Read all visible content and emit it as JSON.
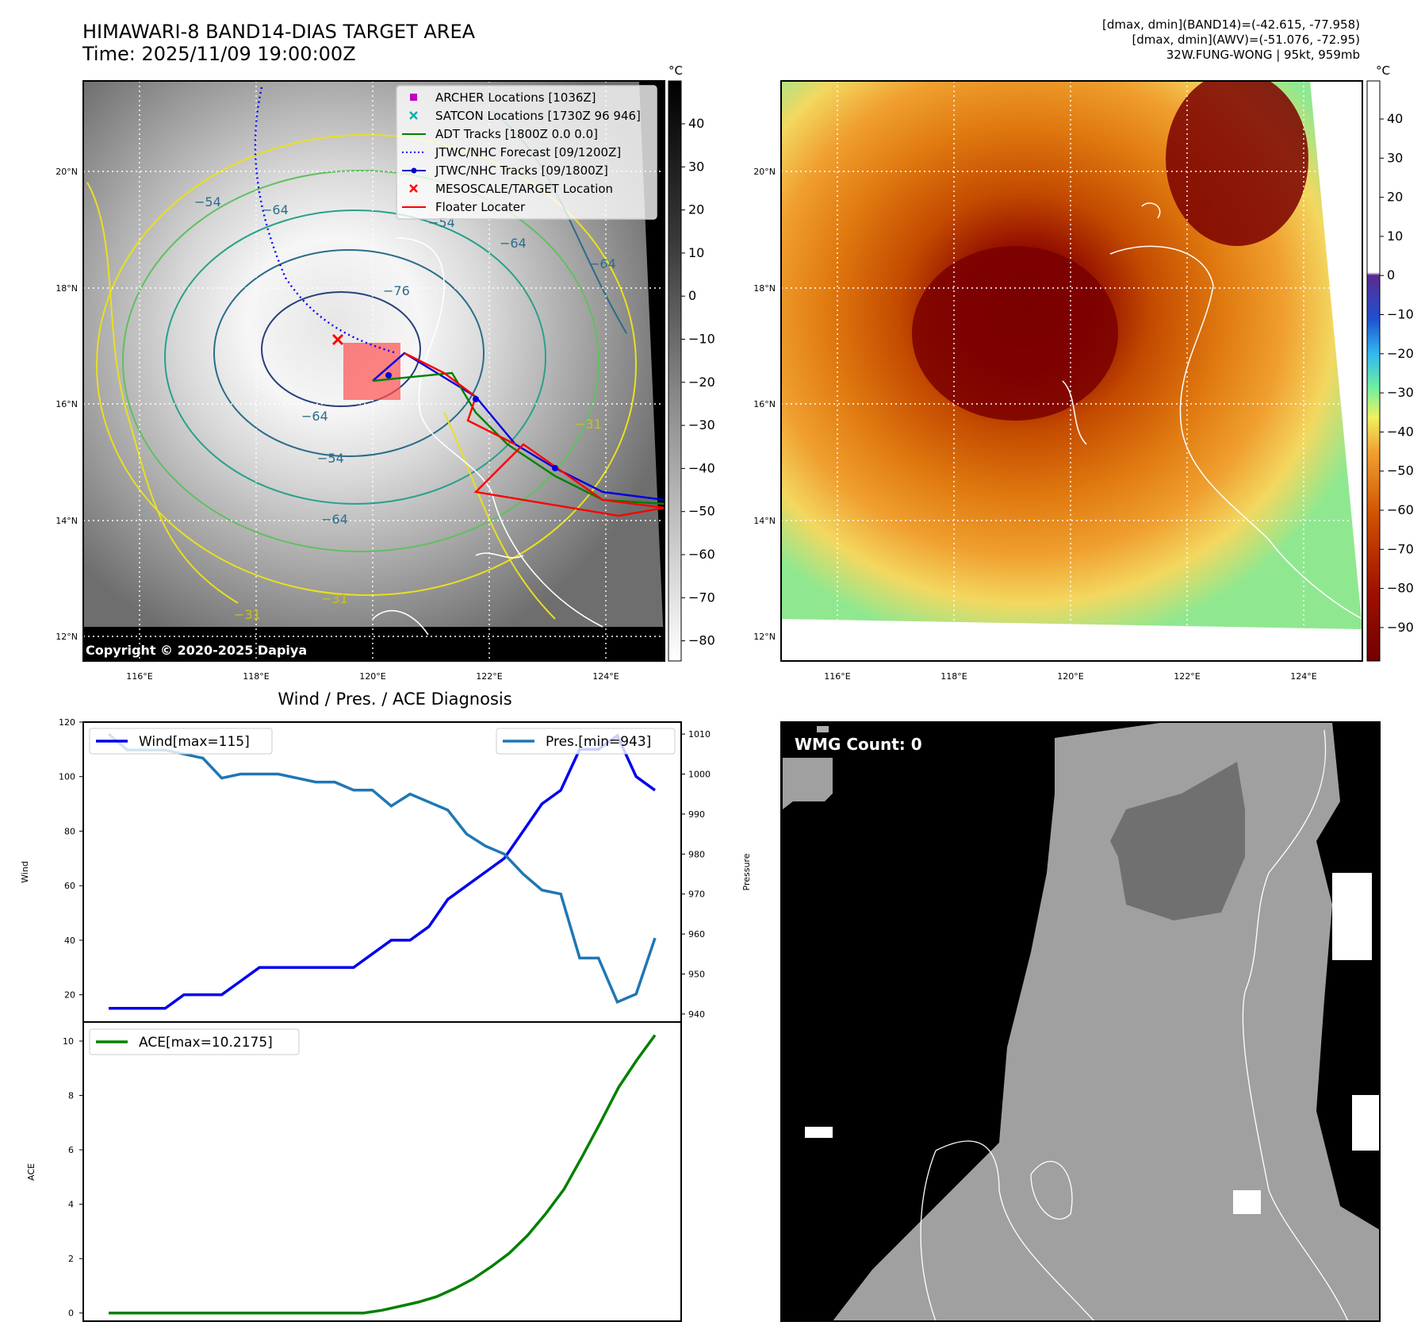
{
  "header": {
    "title_line1": "HIMAWARI-8 BAND14-DIAS TARGET AREA",
    "title_line2": "Time: 2025/11/09 19:00:00Z",
    "info_line1": "[dmax, dmin](BAND14)=(-42.615, -77.958)",
    "info_line2": "[dmax, dmin](AWV)=(-51.076, -72.95)",
    "info_line3": "32W.FUNG-WONG | 95kt, 959mb"
  },
  "map": {
    "lat_labels": [
      "20°N",
      "18°N",
      "16°N",
      "14°N",
      "12°N"
    ],
    "lon_labels": [
      "116°E",
      "118°E",
      "120°E",
      "122°E",
      "124°E"
    ],
    "copyright": "Copyright © 2020-2025 Dapiya",
    "contour_labels": [
      "-64",
      "-54",
      "-64",
      "-54",
      "-31",
      "-31",
      "-64",
      "-54",
      "-76",
      "-64",
      "-31",
      "-64"
    ]
  },
  "legend": {
    "items": [
      {
        "label": "ARCHER Locations [1036Z]",
        "color": "#c000c0",
        "marker": "square"
      },
      {
        "label": "SATCON Locations [1730Z 96 946]",
        "color": "#00b0b0",
        "marker": "x"
      },
      {
        "label": "ADT Tracks [1800Z 0.0 0.0]",
        "color": "#008000",
        "marker": "line"
      },
      {
        "label": "JTWC/NHC Forecast [09/1200Z]",
        "color": "#0000ff",
        "marker": "dotted"
      },
      {
        "label": "JTWC/NHC Tracks [09/1800Z]",
        "color": "#0000cc",
        "marker": "line-dot"
      },
      {
        "label": "MESOSCALE/TARGET Location",
        "color": "#ff0000",
        "marker": "x"
      },
      {
        "label": "Floater Locater",
        "color": "#ff0000",
        "marker": "line"
      }
    ]
  },
  "colorbar_left": {
    "unit": "°C",
    "ticks": [
      "40",
      "30",
      "20",
      "10",
      "0",
      "−10",
      "−20",
      "−30",
      "−40",
      "−50",
      "−60",
      "−70",
      "−80"
    ]
  },
  "colorbar_right": {
    "unit": "°C",
    "ticks": [
      "40",
      "30",
      "20",
      "10",
      "0",
      "−10",
      "−20",
      "−30",
      "−40",
      "−50",
      "−60",
      "−70",
      "−80",
      "−90"
    ]
  },
  "wmg": {
    "label": "WMG Count: 0"
  },
  "chart_data": [
    {
      "type": "line",
      "title": "Wind / Pres. / ACE Diagnosis",
      "ylabel": "Wind",
      "ylabel_right": "Pressure",
      "ylim": [
        10,
        120
      ],
      "ylim_right": [
        938,
        1013
      ],
      "y_ticks": [
        "120",
        "100",
        "80",
        "60",
        "40",
        "20"
      ],
      "y_ticks_right": [
        "1010",
        "1000",
        "990",
        "980",
        "970",
        "960",
        "950",
        "940"
      ],
      "series": [
        {
          "name": "Wind[max=115]",
          "color": "#0000ee",
          "axis": "left",
          "values": [
            15,
            15,
            15,
            15,
            20,
            20,
            20,
            25,
            30,
            30,
            30,
            30,
            30,
            30,
            35,
            40,
            40,
            45,
            55,
            60,
            65,
            70,
            80,
            90,
            95,
            110,
            110,
            115,
            100,
            95
          ]
        },
        {
          "name": "Pres.[min=943]",
          "color": "#1f77b4",
          "axis": "right",
          "values": [
            1010,
            1006,
            1006,
            1006,
            1005,
            1004,
            999,
            1000,
            1000,
            1000,
            999,
            998,
            998,
            996,
            996,
            992,
            995,
            993,
            991,
            985,
            982,
            980,
            975,
            971,
            970,
            954,
            954,
            943,
            945,
            959
          ]
        }
      ],
      "legend": [
        "top-left",
        "top-right"
      ]
    },
    {
      "type": "line",
      "ylabel": "ACE",
      "ylim": [
        -0.3,
        10.7
      ],
      "y_ticks": [
        "10",
        "8",
        "6",
        "4",
        "2",
        "0"
      ],
      "series": [
        {
          "name": "ACE[max=10.2175]",
          "color": "#008000",
          "values": [
            0,
            0,
            0,
            0,
            0,
            0,
            0,
            0,
            0,
            0,
            0,
            0,
            0,
            0,
            0,
            0.1,
            0.25,
            0.4,
            0.6,
            0.9,
            1.25,
            1.7,
            2.2,
            2.85,
            3.65,
            4.55,
            5.75,
            7.0,
            8.3,
            9.3,
            10.2175
          ]
        }
      ],
      "legend": "top-left"
    }
  ]
}
